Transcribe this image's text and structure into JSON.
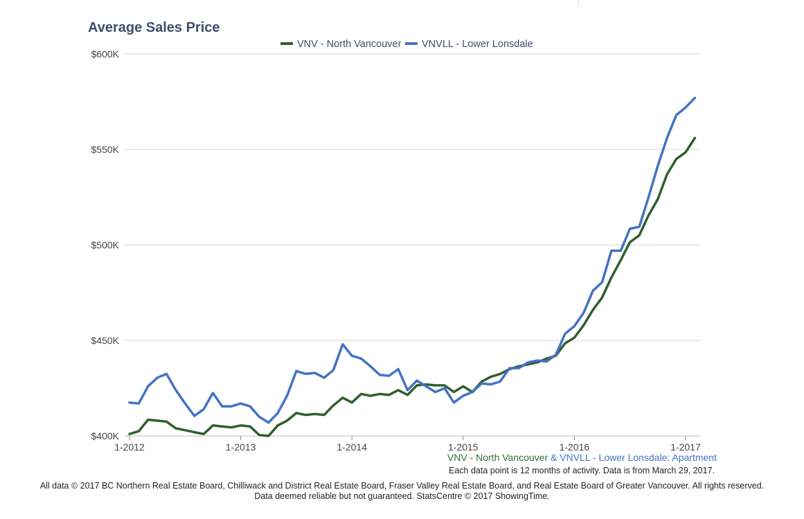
{
  "chart_data": {
    "type": "line",
    "title": "Average Sales Price",
    "subtitle_parts": [
      "VNV - North Vancouver",
      " & ",
      "VNVLL - Lower Lonsdale: Apartment"
    ],
    "note": "Each data point is 12 months of activity. Data is from March 29, 2017.",
    "xlabel": "",
    "ylabel": "",
    "ylim": [
      400000,
      600000
    ],
    "y_ticks": [
      {
        "value": 400000,
        "label": "$400K"
      },
      {
        "value": 450000,
        "label": "$450K"
      },
      {
        "value": 500000,
        "label": "$500K"
      },
      {
        "value": 550000,
        "label": "$550K"
      },
      {
        "value": 600000,
        "label": "$600K"
      }
    ],
    "x_ticks": [
      "1-2012",
      "1-2013",
      "1-2014",
      "1-2015",
      "1-2016",
      "1-2017"
    ],
    "x_start": "1-2012",
    "legend_position": "top-center",
    "grid": true,
    "series": [
      {
        "name": "VNV - North Vancouver",
        "color": "#2f5f2f",
        "values": [
          401000,
          402500,
          408500,
          408000,
          407500,
          404000,
          403000,
          402000,
          401000,
          405500,
          405000,
          404500,
          405500,
          405000,
          400500,
          400000,
          405500,
          408000,
          412000,
          411000,
          411500,
          411000,
          416000,
          420000,
          417500,
          422000,
          421000,
          422000,
          421500,
          424000,
          421500,
          426500,
          427000,
          426500,
          426500,
          423000,
          426000,
          423000,
          428500,
          431000,
          432500,
          435000,
          436500,
          437500,
          438500,
          440500,
          442000,
          448500,
          451500,
          458000,
          466000,
          472500,
          483000,
          492000,
          501500,
          505000,
          515500,
          524000,
          537000,
          545000,
          548500,
          556000
        ],
        "end": "3-2017"
      },
      {
        "name": "VNVLL - Lower Lonsdale",
        "color": "#4472c4",
        "values": [
          417500,
          417000,
          426000,
          430500,
          432500,
          424000,
          417000,
          410500,
          414000,
          422500,
          415500,
          415500,
          417000,
          415500,
          410000,
          407000,
          412000,
          421000,
          434000,
          432500,
          433000,
          430500,
          434500,
          448000,
          442000,
          440500,
          436500,
          432000,
          431500,
          435000,
          424000,
          429000,
          426000,
          423000,
          425000,
          417500,
          421000,
          423000,
          427500,
          427000,
          428500,
          435500,
          435500,
          438500,
          439500,
          439000,
          442500,
          453500,
          457500,
          464500,
          476000,
          480500,
          497000,
          497000,
          508500,
          509500,
          525000,
          541500,
          556000,
          568000,
          572000,
          577000
        ],
        "end": "3-2017"
      }
    ]
  },
  "footer": {
    "line1": "All data © 2017 BC Northern Real Estate Board, Chilliwack and District Real Estate Board, Fraser Valley Real Estate Board, and Real Estate Board of Greater Vancouver. All rights reserved.",
    "line2": "Data deemed reliable but not guaranteed. StatsCentre © 2017 ShowingTime."
  }
}
